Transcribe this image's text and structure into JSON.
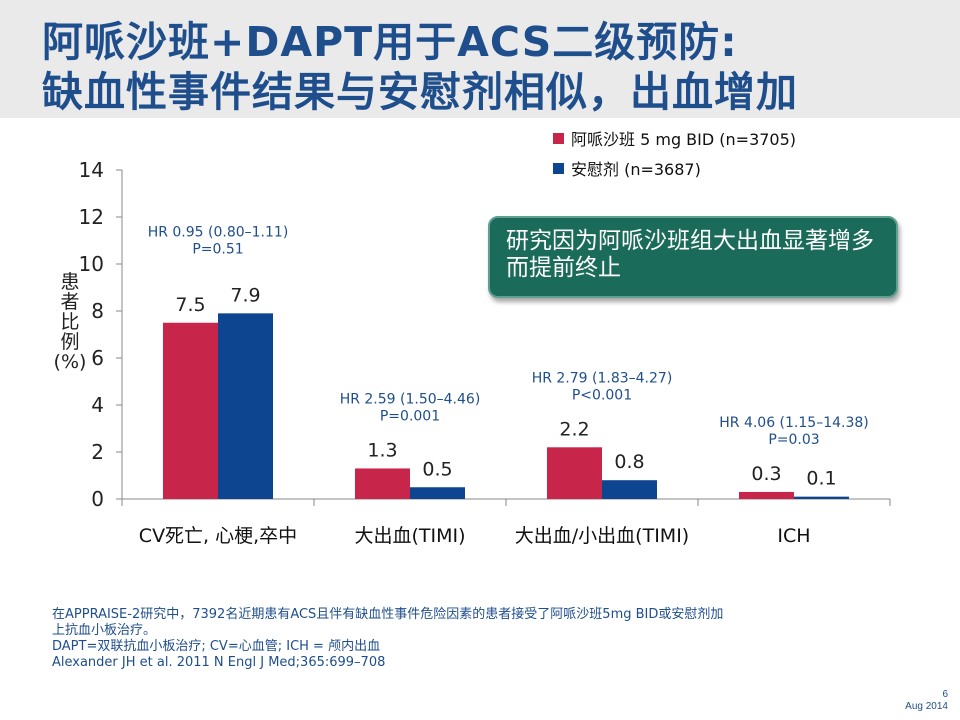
{
  "slide": {
    "title_line1": "阿哌沙班+DAPT用于ACS二级预防:",
    "title_line2": "缺血性事件结果与安慰剂相似，出血增加",
    "callout": "研究因为阿哌沙班组大出血显著增多而提前终止",
    "footnotes": [
      "在APPRAISE-2研究中，7392名近期患有ACS且伴有缺血性事件危险因素的患者接受了阿哌沙班5mg BID或安慰剂加",
      "上抗血小板治疗。",
      "DAPT=双联抗血小板治疗; CV=心血管;  ICH = 颅内出血",
      "Alexander JH et al. 2011 N Engl J Med;365:699–708"
    ],
    "page_number": "6",
    "date": "Aug 2014"
  },
  "chart_data": {
    "type": "bar",
    "categories": [
      "CV死亡, 心梗,卒中",
      "大出血(TIMI)",
      "大出血/小出血(TIMI)",
      "ICH"
    ],
    "series": [
      {
        "name": "阿哌沙班 5 mg BID (n=3705)",
        "values": [
          7.5,
          1.3,
          2.2,
          0.3
        ],
        "color": "#c8254a"
      },
      {
        "name": "安慰剂 (n=3687)",
        "values": [
          7.9,
          0.5,
          0.8,
          0.1
        ],
        "color": "#0e4590"
      }
    ],
    "value_labels": [
      [
        "7.5",
        "1.3",
        "2.2",
        "0.3"
      ],
      [
        "7.9",
        "0.5",
        "0.8",
        "0.1"
      ]
    ],
    "annotations": [
      [
        "HR 0.95 (0.80–1.11)",
        "P=0.51"
      ],
      [
        "HR 2.59 (1.50–4.46)",
        "P=0.001"
      ],
      [
        "HR 2.79 (1.83–4.27)",
        "P<0.001"
      ],
      [
        "HR 4.06 (1.15–14.38)",
        "P=0.03"
      ]
    ],
    "annotation_colors": [
      "#1f4e8c",
      "#1f4e8c",
      "#1f4e8c",
      "#1f4e8c"
    ],
    "yticks": [
      "0",
      "2",
      "4",
      "6",
      "8",
      "10",
      "12",
      "14"
    ],
    "ylabel": "患者比例(%)",
    "ylim": [
      0,
      14
    ],
    "grid": false,
    "legend_position": "top-right"
  }
}
